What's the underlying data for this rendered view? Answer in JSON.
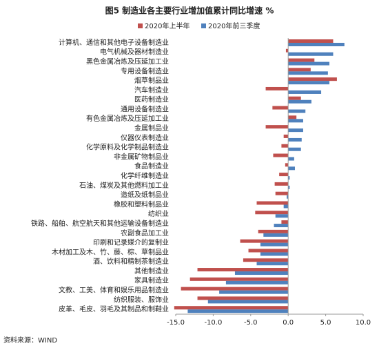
{
  "chart_data": {
    "type": "hbar",
    "title": "图5  制造业各主要行业增加值累计同比增速 %",
    "source": "资料来源：WIND",
    "categories": [
      "计算机、通信和其他电子设备制造业",
      "电气机械及器材制造业",
      "黑色金属冶炼及压延加工业",
      "专用设备制造业",
      "烟草制品业",
      "汽车制造业",
      "医药制造业",
      "通用设备制造业",
      "有色金属冶炼及压延加工业",
      "金属制品业",
      "仪器仪表制造业",
      "化学原料及化学制品制造业",
      "非金属矿物制品业",
      "食品制造业",
      "化学纤维制造业",
      "石油、煤炭及其他燃料加工业",
      "造纸及纸制品业",
      "橡胶和塑料制品业",
      "纺织业",
      "铁路、船舶、航空航天和其他运输设备制造业",
      "农副食品加工业",
      "印刷和记录媒介的复制业",
      "木材加工及木、竹、藤、棕、草制品业",
      "酒、饮料和精制茶制造业",
      "其他制造业",
      "家具制造业",
      "文教、工美、体育和娱乐用品制造业",
      "纺织服装、服饰业",
      "皮革、毛皮、羽毛及其制品和制鞋业"
    ],
    "series": [
      {
        "name": "2020年上半年",
        "color": "#c0504d",
        "values": [
          6.0,
          -0.3,
          3.5,
          3.0,
          6.5,
          -3.0,
          1.7,
          -2.1,
          1.1,
          -3.0,
          -0.6,
          -0.9,
          -2.0,
          -0.4,
          -1.2,
          -1.8,
          -1.7,
          -4.2,
          -4.4,
          -0.9,
          -4.0,
          -6.4,
          -5.3,
          -6.0,
          -12.1,
          -13.1,
          -14.3,
          -12.1,
          -15.2
        ]
      },
      {
        "name": "2020年前三季度",
        "color": "#4f81bd",
        "values": [
          7.5,
          6.0,
          5.5,
          5.3,
          5.5,
          4.4,
          3.1,
          2.3,
          2.0,
          2.0,
          1.8,
          1.7,
          0.8,
          0.9,
          0.2,
          0.2,
          -0.2,
          -0.6,
          -1.7,
          -1.9,
          -3.3,
          -3.7,
          -3.7,
          -4.2,
          -7.1,
          -8.3,
          -9.2,
          -10.7,
          -13.4
        ]
      }
    ],
    "xlim": [
      -15,
      10
    ],
    "xticks": [
      {
        "value": -15,
        "label": "-15.0"
      },
      {
        "value": -10,
        "label": "-10.0"
      },
      {
        "value": -5,
        "label": "-5.0"
      },
      {
        "value": 0,
        "label": "0.0"
      },
      {
        "value": 5,
        "label": "5.0"
      },
      {
        "value": 10,
        "label": "10.0"
      }
    ]
  }
}
